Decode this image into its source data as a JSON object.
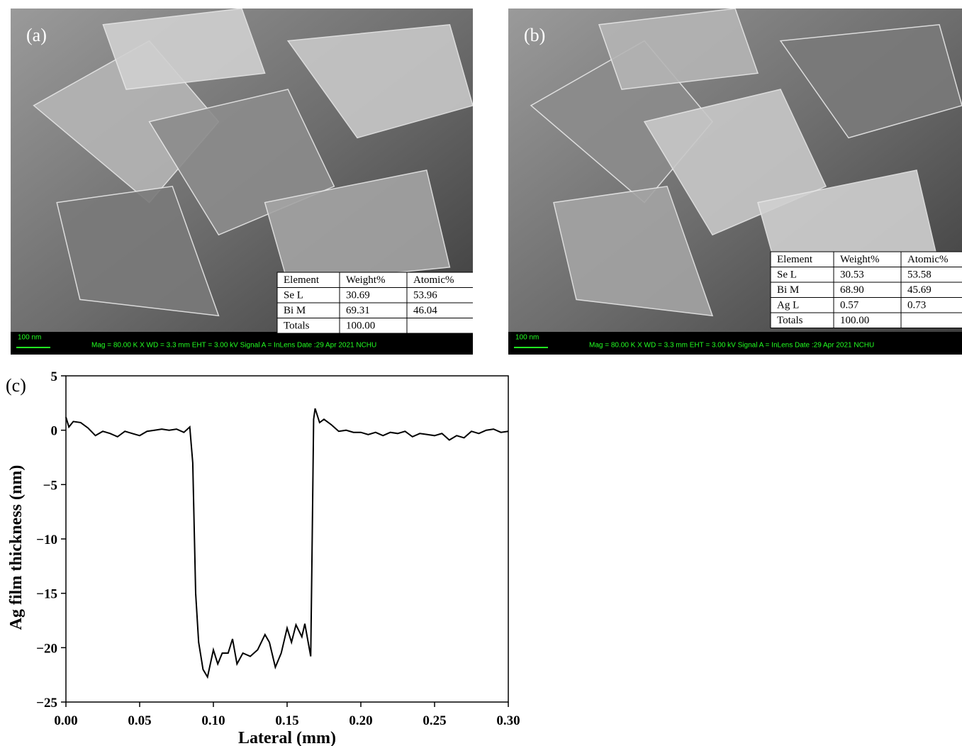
{
  "panels": [
    {
      "label": "(a)",
      "scale": "100 nm",
      "info": "Mag =  80.00 K X   WD =  3.3 mm    EHT =  3.00 kV    Signal A = InLens  Date :29 Apr 2021    NCHU",
      "table": {
        "header": [
          "Element",
          "Weight%",
          "Atomic%"
        ],
        "rows": [
          [
            "Se L",
            "30.69",
            "53.96"
          ],
          [
            "Bi M",
            "69.31",
            "46.04"
          ],
          [
            "Totals",
            "100.00"
          ]
        ]
      }
    },
    {
      "label": "(b)",
      "scale": "100 nm",
      "info": "Mag =  80.00 K X   WD =  3.3 mm    EHT =  3.00 kV    Signal A = InLens  Date :29 Apr 2021    NCHU",
      "table": {
        "header": [
          "Element",
          "Weight%",
          "Atomic%"
        ],
        "rows": [
          [
            "Se L",
            "30.53",
            "53.58"
          ],
          [
            "Bi M",
            "68.90",
            "45.69"
          ],
          [
            "Ag L",
            "0.57",
            "0.73"
          ],
          [
            "Totals",
            "100.00"
          ]
        ]
      }
    }
  ],
  "chart_data": {
    "type": "line",
    "panel_label": "(c)",
    "x_label": "Lateral (mm)",
    "y_label": "Ag film thickness (nm)",
    "color": "#000000",
    "x": [
      0,
      0.002,
      0.005,
      0.01,
      0.015,
      0.02,
      0.025,
      0.03,
      0.035,
      0.04,
      0.045,
      0.05,
      0.055,
      0.06,
      0.065,
      0.07,
      0.075,
      0.08,
      0.084,
      0.086,
      0.088,
      0.09,
      0.093,
      0.096,
      0.1,
      0.103,
      0.106,
      0.11,
      0.113,
      0.116,
      0.12,
      0.125,
      0.13,
      0.135,
      0.138,
      0.142,
      0.146,
      0.15,
      0.153,
      0.156,
      0.16,
      0.162,
      0.166,
      0.167,
      0.168,
      0.169,
      0.172,
      0.175,
      0.18,
      0.185,
      0.19,
      0.195,
      0.2,
      0.205,
      0.21,
      0.215,
      0.22,
      0.225,
      0.23,
      0.235,
      0.24,
      0.245,
      0.25,
      0.255,
      0.26,
      0.265,
      0.27,
      0.275,
      0.28,
      0.285,
      0.29,
      0.295,
      0.3
    ],
    "values": [
      1.2,
      0.3,
      0.8,
      0.7,
      0.2,
      -0.5,
      -0.1,
      -0.3,
      -0.6,
      -0.1,
      -0.3,
      -0.5,
      -0.1,
      0,
      0.1,
      0,
      0.1,
      -0.2,
      0.3,
      -3,
      -15,
      -19.5,
      -22,
      -22.7,
      -20.2,
      -21.5,
      -20.5,
      -20.5,
      -19.2,
      -21.5,
      -20.5,
      -20.8,
      -20.2,
      -18.8,
      -19.5,
      -21.8,
      -20.5,
      -18.2,
      -19.5,
      -17.9,
      -19,
      -17.8,
      -20.8,
      -10,
      1,
      2,
      0.7,
      1,
      0.5,
      -0.1,
      0,
      -0.2,
      -0.2,
      -0.4,
      -0.2,
      -0.5,
      -0.2,
      -0.3,
      -0.1,
      -0.6,
      -0.3,
      -0.4,
      -0.5,
      -0.3,
      -0.9,
      -0.5,
      -0.7,
      -0.1,
      -0.3,
      0,
      0.1,
      -0.2,
      -0.1
    ],
    "xlim": [
      0,
      0.3
    ],
    "ylim": [
      -25,
      5
    ],
    "xticks": [
      {
        "value": 0,
        "label": "0.00"
      },
      0.05,
      {
        "value": 0.1,
        "label": "0.10"
      },
      0.15,
      {
        "value": 0.2,
        "label": "0.20"
      },
      0.25,
      {
        "value": 0.3,
        "label": "0.30"
      }
    ],
    "yticks": [
      {
        "value": -25,
        "label": "−25"
      },
      {
        "value": -20,
        "label": "−20"
      },
      {
        "value": -15,
        "label": "−15"
      },
      {
        "value": -10,
        "label": "−10"
      },
      {
        "value": -5,
        "label": "−5"
      },
      0,
      5
    ]
  }
}
